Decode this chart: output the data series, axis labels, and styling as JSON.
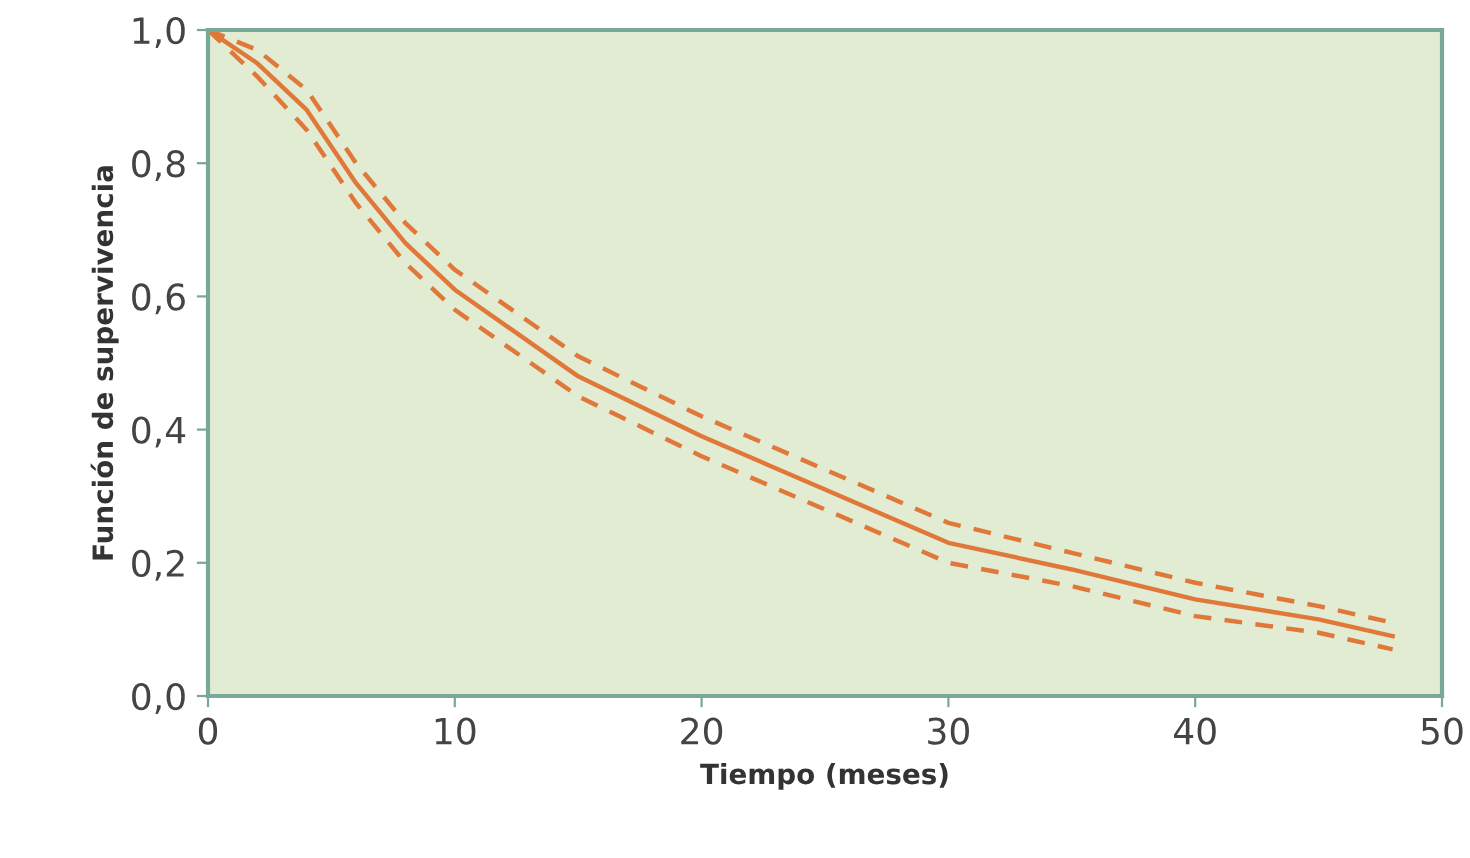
{
  "chart_data": {
    "type": "line",
    "xlabel": "Tiempo (meses)",
    "ylabel": "Función de supervivencia",
    "x": [
      0,
      2,
      4,
      6,
      8,
      10,
      15,
      20,
      25,
      30,
      35,
      40,
      45,
      48
    ],
    "series": [
      {
        "color": "#e0783a",
        "line_style": "solid",
        "values": [
          1.0,
          0.95,
          0.88,
          0.77,
          0.68,
          0.61,
          0.48,
          0.39,
          0.31,
          0.23,
          0.19,
          0.145,
          0.115,
          0.09
        ]
      },
      {
        "color": "#e0783a",
        "line_style": "dashed",
        "values": [
          1.0,
          0.97,
          0.91,
          0.8,
          0.71,
          0.64,
          0.51,
          0.42,
          0.34,
          0.26,
          0.215,
          0.17,
          0.135,
          0.11
        ]
      },
      {
        "color": "#e0783a",
        "line_style": "dashed",
        "values": [
          1.0,
          0.93,
          0.85,
          0.74,
          0.65,
          0.58,
          0.45,
          0.36,
          0.28,
          0.2,
          0.165,
          0.12,
          0.095,
          0.07
        ]
      }
    ],
    "xlim": [
      0,
      50
    ],
    "ylim": [
      0,
      1
    ],
    "xticks": [
      0,
      10,
      20,
      30,
      40,
      50
    ],
    "yticks": [
      {
        "value": 0,
        "label": "0,0"
      },
      {
        "value": 0.2,
        "label": "0,2"
      },
      {
        "value": 0.4,
        "label": "0,4"
      },
      {
        "value": 0.6,
        "label": "0,6"
      },
      {
        "value": 0.8,
        "label": "0,8"
      },
      {
        "value": 1,
        "label": "1,0"
      }
    ],
    "grid": false,
    "legend": false
  }
}
